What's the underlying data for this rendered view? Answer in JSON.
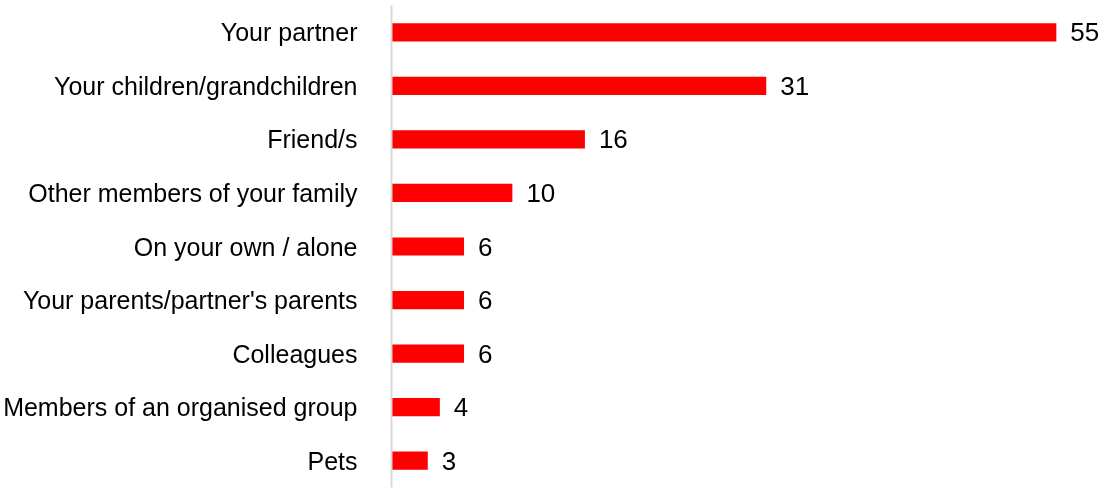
{
  "chart_data": {
    "type": "bar",
    "orientation": "horizontal",
    "categories": [
      "Your partner",
      "Your children/grandchildren",
      "Friend/s",
      "Other members of your family",
      "On your own / alone",
      "Your parents/partner's parents",
      "Colleagues",
      "Members of an organised group",
      "Pets"
    ],
    "values": [
      55,
      31,
      16,
      10,
      6,
      6,
      6,
      4,
      3
    ],
    "color": "#ff0000",
    "data_labels": true,
    "grid": false
  }
}
